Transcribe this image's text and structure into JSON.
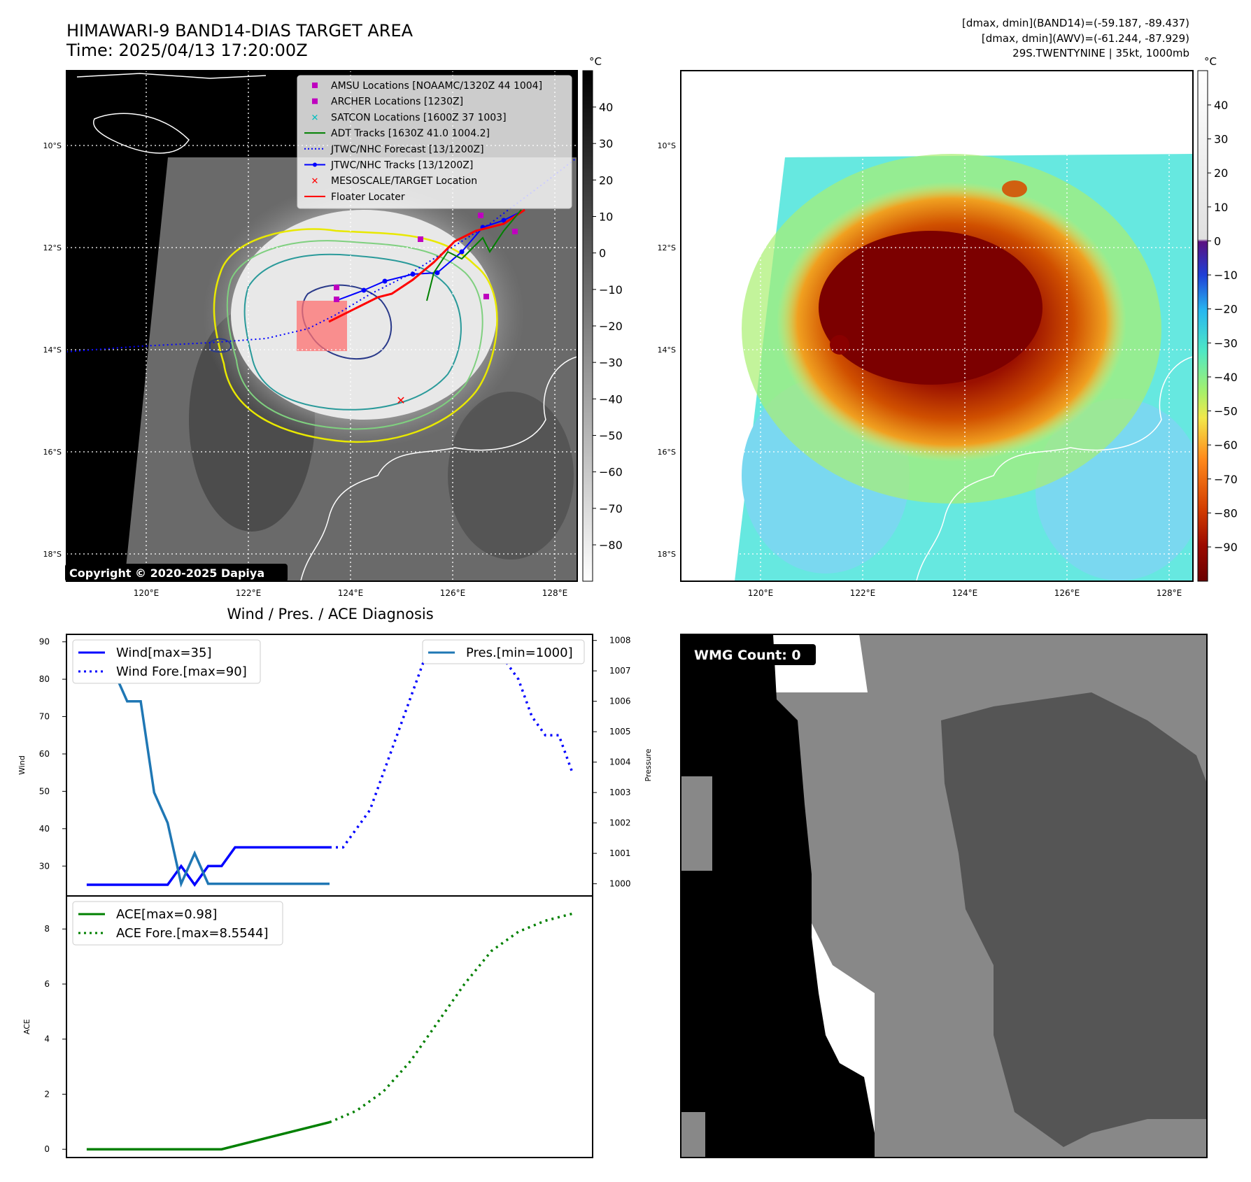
{
  "header": {
    "title_line1": "HIMAWARI-9 BAND14-DIAS TARGET AREA",
    "title_line2": "Time: 2025/04/13 17:20:00Z",
    "info_line1": "[dmax, dmin](BAND14)=(-59.187, -89.437)",
    "info_line2": "[dmax, dmin](AWV)=(-61.244, -87.929)",
    "info_line3": "29S.TWENTYNINE | 35kt, 1000mb"
  },
  "copyright": "Copyright © 2020-2025 Dapiya",
  "map_axes": {
    "lon_labels": [
      "120°E",
      "122°E",
      "124°E",
      "126°E",
      "128°E"
    ],
    "lat_labels": [
      "10°S",
      "12°S",
      "14°S",
      "16°S",
      "18°S"
    ]
  },
  "colorbar_gray": {
    "unit": "°C",
    "ticks": [
      "40",
      "30",
      "20",
      "10",
      "0",
      "−10",
      "−20",
      "−30",
      "−40",
      "−50",
      "−60",
      "−70",
      "−80"
    ]
  },
  "colorbar_color": {
    "unit": "°C",
    "ticks": [
      "40",
      "30",
      "20",
      "10",
      "0",
      "−10",
      "−20",
      "−30",
      "−40",
      "−50",
      "−60",
      "−70",
      "−80",
      "−90"
    ]
  },
  "map_legend": [
    {
      "label": "AMSU Locations [NOAAMC/1320Z 44 1004]",
      "marker": "square",
      "color": "#bf00bf"
    },
    {
      "label": "ARCHER Locations [1230Z]",
      "marker": "square",
      "color": "#bf00bf"
    },
    {
      "label": "SATCON Locations [1600Z 37 1003]",
      "marker": "x",
      "color": "#00bfbf"
    },
    {
      "label": "ADT Tracks [1630Z 41.0 1004.2]",
      "marker": "line",
      "color": "#008000"
    },
    {
      "label": "JTWC/NHC Forecast [13/1200Z]",
      "marker": "dotted",
      "color": "#0000ff"
    },
    {
      "label": "JTWC/NHC Tracks [13/1200Z]",
      "marker": "line-dot",
      "color": "#0000ff"
    },
    {
      "label": "MESOSCALE/TARGET Location",
      "marker": "x",
      "color": "#ff0000"
    },
    {
      "label": "Floater Locater",
      "marker": "line",
      "color": "#ff0000"
    }
  ],
  "diag": {
    "title": "Wind / Pres. / ACE Diagnosis",
    "wind_ylabel": "Wind",
    "pres_ylabel": "Pressure",
    "ace_ylabel": "ACE",
    "legend_wind": "Wind[max=35]",
    "legend_wind_fore": "Wind Fore.[max=90]",
    "legend_pres": "Pres.[min=1000]",
    "legend_ace": "ACE[max=0.98]",
    "legend_ace_fore": "ACE Fore.[max=8.5544]"
  },
  "wmg": {
    "label": "WMG Count: 0"
  },
  "chart_data": [
    {
      "type": "line",
      "panel": "wind",
      "ylim": [
        22,
        92
      ],
      "yticks": [
        30,
        40,
        50,
        60,
        70,
        80,
        90
      ],
      "series": [
        {
          "name": "Wind[max=35]",
          "color": "#0000ff",
          "style": "solid",
          "x": [
            0,
            1,
            2,
            3,
            4,
            5,
            6,
            7,
            8,
            9,
            10,
            11,
            12,
            13,
            14,
            15,
            16,
            17,
            18
          ],
          "y": [
            25,
            25,
            25,
            25,
            25,
            25,
            25,
            30,
            25,
            30,
            30,
            35,
            35,
            35,
            35,
            35,
            35,
            35,
            35
          ]
        },
        {
          "name": "Wind Fore.[max=90]",
          "color": "#0000ff",
          "style": "dotted",
          "x": [
            18,
            19,
            20,
            21,
            22,
            23,
            24,
            25,
            26,
            27,
            28,
            29,
            30,
            31,
            32,
            33,
            34,
            35,
            36
          ],
          "y": [
            35,
            35,
            40,
            45,
            55,
            65,
            75,
            85,
            85,
            90,
            90,
            90,
            85,
            85,
            80,
            70,
            65,
            65,
            55
          ]
        }
      ]
    },
    {
      "type": "line",
      "panel": "pressure",
      "ylim": [
        999.6,
        1008.2
      ],
      "yticks": [
        1000,
        1001,
        1002,
        1003,
        1004,
        1005,
        1006,
        1007,
        1008
      ],
      "series": [
        {
          "name": "Pres.[min=1000]",
          "color": "#1f77b4",
          "style": "solid",
          "x": [
            0,
            1,
            2,
            3,
            4,
            5,
            6,
            7,
            8,
            9,
            10,
            11,
            12,
            13,
            14,
            15,
            16,
            17,
            18
          ],
          "y": [
            1008,
            1007,
            1007,
            1006,
            1006,
            1003,
            1002,
            1000,
            1001,
            1000,
            1000,
            1000,
            1000,
            1000,
            1000,
            1000,
            1000,
            1000,
            1000
          ]
        }
      ]
    },
    {
      "type": "line",
      "panel": "ace",
      "ylim": [
        -0.3,
        9.2
      ],
      "yticks": [
        0,
        2,
        4,
        6,
        8
      ],
      "series": [
        {
          "name": "ACE[max=0.98]",
          "color": "#008000",
          "style": "solid",
          "x": [
            0,
            10,
            18
          ],
          "y": [
            0,
            0,
            0.98
          ]
        },
        {
          "name": "ACE Fore.[max=8.5544]",
          "color": "#008000",
          "style": "dotted",
          "x": [
            18,
            20,
            22,
            24,
            26,
            28,
            30,
            32,
            34,
            36
          ],
          "y": [
            0.98,
            1.4,
            2.1,
            3.2,
            4.6,
            6.0,
            7.2,
            7.9,
            8.3,
            8.5544
          ]
        }
      ]
    }
  ]
}
